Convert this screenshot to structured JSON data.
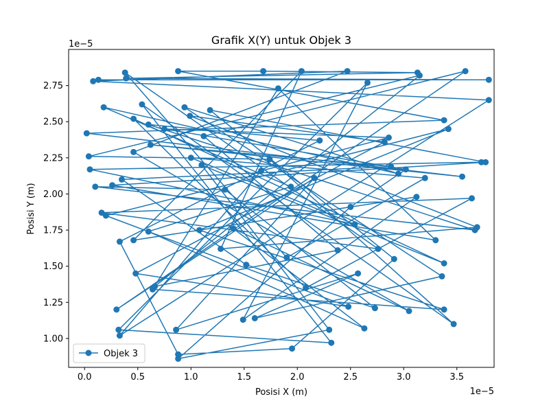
{
  "chart_data": {
    "type": "line",
    "title": "Grafik X(Y) untuk Objek 3",
    "xlabel": "Posisi X (m)",
    "ylabel": "Posisi Y (m)",
    "x_offset_label": "1e−5",
    "y_offset_label": "1e−5",
    "xlim": [
      -0.15,
      3.85
    ],
    "ylim": [
      0.8,
      3.0
    ],
    "x_ticks": [
      0.0,
      0.5,
      1.0,
      1.5,
      2.0,
      2.5,
      3.0,
      3.5
    ],
    "x_tick_labels": [
      "0.0",
      "0.5",
      "1.0",
      "1.5",
      "2.0",
      "2.5",
      "3.0",
      "3.5"
    ],
    "y_ticks": [
      1.0,
      1.25,
      1.5,
      1.75,
      2.0,
      2.25,
      2.5,
      2.75
    ],
    "y_tick_labels": [
      "1.00",
      "1.25",
      "1.50",
      "1.75",
      "2.00",
      "2.25",
      "2.50",
      "2.75"
    ],
    "grid": false,
    "legend_position": "lower-left",
    "color": "#1f77b4",
    "marker": "circle",
    "series": [
      {
        "name": "Objek 3",
        "points": [
          [
            0.13,
            2.79
          ],
          [
            3.8,
            2.79
          ],
          [
            0.39,
            2.8
          ],
          [
            3.13,
            2.84
          ],
          [
            1.68,
            2.85
          ],
          [
            0.88,
            2.85
          ],
          [
            3.38,
            2.51
          ],
          [
            0.02,
            2.42
          ],
          [
            3.55,
            2.12
          ],
          [
            0.62,
            2.34
          ],
          [
            2.88,
            2.19
          ],
          [
            0.35,
            2.1
          ],
          [
            1.52,
            1.51
          ],
          [
            2.73,
            1.21
          ],
          [
            1.32,
            2.03
          ],
          [
            0.1,
            2.05
          ],
          [
            3.67,
            1.75
          ],
          [
            0.6,
            2.48
          ],
          [
            2.21,
            2.37
          ],
          [
            0.33,
            1.67
          ],
          [
            0.88,
            0.89
          ],
          [
            1.95,
            0.93
          ],
          [
            2.91,
            1.55
          ],
          [
            1.18,
            2.58
          ],
          [
            3.77,
            2.22
          ],
          [
            0.26,
            2.06
          ],
          [
            3.3,
            1.68
          ],
          [
            1.82,
            2.73
          ],
          [
            0.64,
            1.34
          ],
          [
            3.38,
            1.2
          ],
          [
            1.08,
            1.75
          ],
          [
            3.42,
            2.45
          ],
          [
            0.2,
            1.85
          ],
          [
            2.48,
            1.22
          ],
          [
            0.48,
            1.45
          ],
          [
            2.82,
            2.36
          ],
          [
            0.99,
            2.54
          ],
          [
            3.69,
            1.77
          ],
          [
            1.28,
            1.62
          ],
          [
            2.04,
            2.85
          ],
          [
            0.46,
            1.68
          ],
          [
            3.12,
            1.98
          ],
          [
            1.49,
            1.13
          ],
          [
            2.66,
            2.77
          ],
          [
            0.32,
            1.06
          ],
          [
            2.32,
            0.97
          ],
          [
            0.54,
            2.62
          ],
          [
            3.47,
            1.1
          ],
          [
            1.74,
            2.24
          ],
          [
            0.04,
            2.26
          ],
          [
            3.15,
            2.82
          ],
          [
            0.66,
            1.36
          ],
          [
            2.38,
            1.61
          ],
          [
            1.12,
            2.4
          ],
          [
            3.58,
            2.85
          ],
          [
            0.3,
            1.2
          ],
          [
            2.16,
            2.11
          ],
          [
            0.86,
            1.06
          ],
          [
            2.57,
            1.45
          ],
          [
            1.6,
            1.14
          ],
          [
            3.36,
            1.43
          ],
          [
            0.94,
            2.6
          ],
          [
            2.95,
            2.14
          ],
          [
            0.18,
            2.6
          ],
          [
            1.94,
            2.05
          ],
          [
            0.6,
            1.74
          ],
          [
            2.63,
            1.07
          ],
          [
            1.4,
            1.76
          ],
          [
            3.05,
            1.19
          ],
          [
            0.46,
            2.29
          ],
          [
            2.47,
            2.85
          ],
          [
            0.08,
            2.78
          ],
          [
            3.8,
            2.65
          ],
          [
            0.33,
            1.02
          ],
          [
            1.66,
            2.16
          ],
          [
            2.86,
            2.39
          ],
          [
            0.75,
            2.45
          ],
          [
            3.02,
            2.17
          ],
          [
            2.5,
            1.91
          ],
          [
            0.88,
            0.86
          ],
          [
            2.3,
            1.06
          ],
          [
            1.1,
            2.2
          ],
          [
            3.38,
            1.52
          ],
          [
            0.46,
            2.52
          ],
          [
            2.08,
            1.35
          ],
          [
            3.64,
            1.97
          ],
          [
            0.16,
            1.87
          ],
          [
            2.76,
            1.62
          ],
          [
            0.38,
            2.84
          ],
          [
            1.9,
            1.56
          ],
          [
            3.2,
            2.11
          ],
          [
            1.0,
            2.25
          ],
          [
            2.54,
            1.79
          ],
          [
            0.05,
            2.17
          ],
          [
            3.73,
            2.22
          ]
        ]
      }
    ]
  }
}
